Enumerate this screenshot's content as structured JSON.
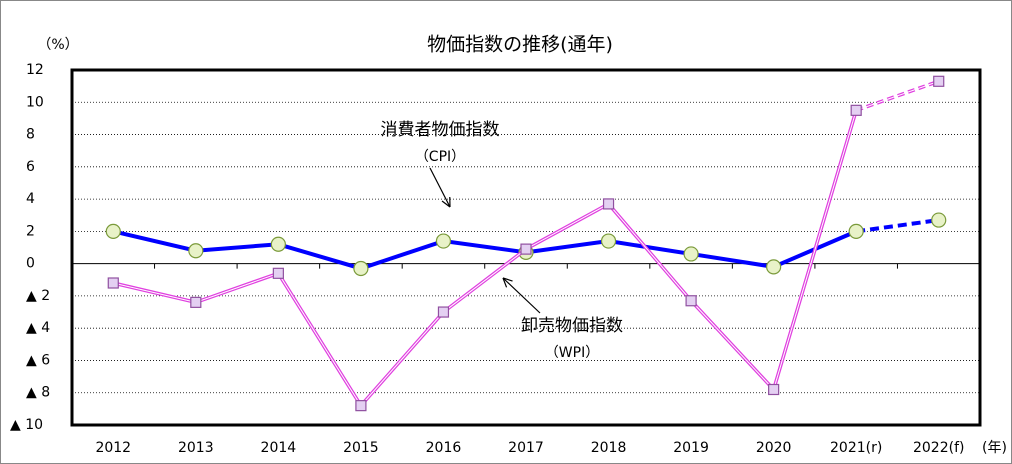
{
  "chart_data": {
    "type": "line",
    "title": "物価指数の推移(通年)",
    "y_label": "（%）",
    "x_label": "(年)",
    "categories": [
      "2012",
      "2013",
      "2014",
      "2015",
      "2016",
      "2017",
      "2018",
      "2019",
      "2020",
      "2021(r)",
      "2022(f)"
    ],
    "series": [
      {
        "color": "#0000ff",
        "marker_fill": "#e8f2c8",
        "marker_stroke": "#7a9a3a",
        "marker": "circle",
        "dash_from": 9,
        "values": [
          2.0,
          0.8,
          1.2,
          -0.3,
          1.4,
          0.7,
          1.4,
          0.6,
          -0.2,
          2.0,
          2.7
        ]
      },
      {
        "color": "#e040e0",
        "marker_fill": "#e4d0f2",
        "marker_stroke": "#9050a0",
        "marker": "square",
        "dash_from": 9,
        "values": [
          -1.2,
          -2.4,
          -0.6,
          -8.8,
          -3.0,
          0.9,
          3.7,
          -2.3,
          -7.8,
          9.5,
          11.3
        ]
      }
    ],
    "annotations": [
      {
        "lines": [
          "消費者物価指数",
          "（CPI）"
        ]
      },
      {
        "lines": [
          "卸売物価指数",
          "（WPI）"
        ]
      }
    ],
    "ylim": [
      -10,
      12
    ],
    "yticks": [
      {
        "value": -10,
        "label": "▲ 10"
      },
      {
        "value": -8,
        "label": "▲ 8"
      },
      {
        "value": -6,
        "label": "▲ 6"
      },
      {
        "value": -4,
        "label": "▲ 4"
      },
      {
        "value": -2,
        "label": "▲ 2"
      },
      0,
      2,
      4,
      6,
      8,
      10,
      12
    ],
    "grid": true
  }
}
